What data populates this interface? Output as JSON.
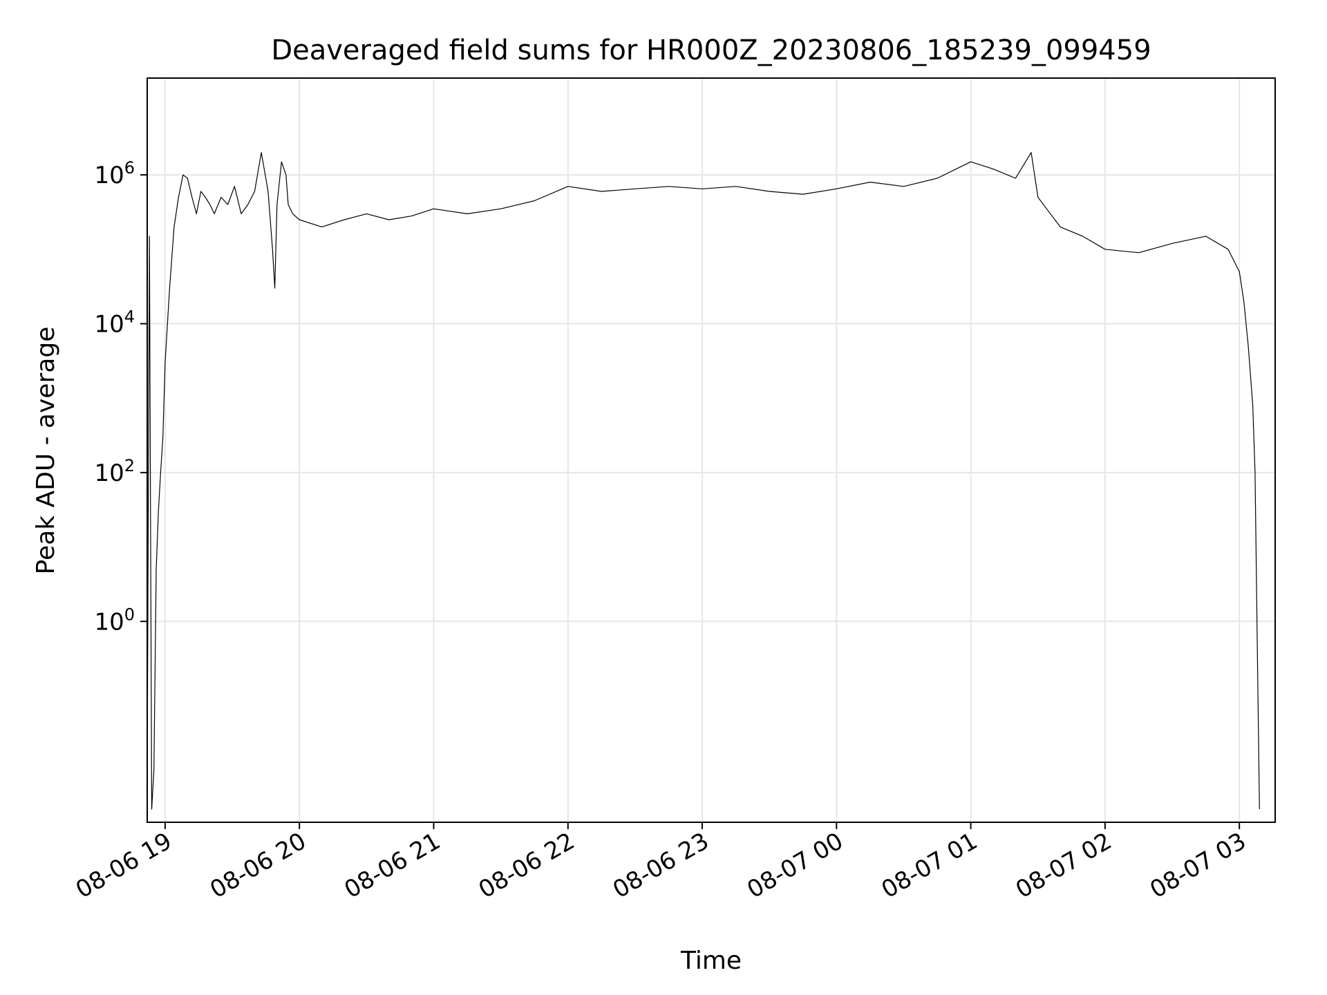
{
  "chart_data": {
    "type": "line",
    "title": "Deaveraged field sums for HR000Z_20230806_185239_099459",
    "xlabel": "Time",
    "ylabel": "Peak ADU - average",
    "yscale": "log",
    "xlim": [
      "08-06 18:52",
      "08-07 03:16"
    ],
    "ylim": [
      0.002,
      20000000
    ],
    "grid": true,
    "line_color": "#000000",
    "grid_color": "#e6e6e6",
    "x_ticks": [
      "08-06 19",
      "08-06 20",
      "08-06 21",
      "08-06 22",
      "08-06 23",
      "08-07 00",
      "08-07 01",
      "08-07 02",
      "08-07 03"
    ],
    "y_ticks": [
      {
        "base": "10",
        "exp": "0",
        "value": 1
      },
      {
        "base": "10",
        "exp": "2",
        "value": 100
      },
      {
        "base": "10",
        "exp": "4",
        "value": 10000
      },
      {
        "base": "10",
        "exp": "6",
        "value": 1000000
      }
    ],
    "series": [
      {
        "x": [
          "08-06 18:52",
          "08-06 18:53",
          "08-06 18:54",
          "08-06 18:55",
          "08-06 18:56",
          "08-06 18:57",
          "08-06 18:58",
          "08-06 18:59",
          "08-06 19:00",
          "08-06 19:02",
          "08-06 19:04",
          "08-06 19:06",
          "08-06 19:08",
          "08-06 19:10",
          "08-06 19:12",
          "08-06 19:14",
          "08-06 19:16",
          "08-06 19:18",
          "08-06 19:20",
          "08-06 19:22",
          "08-06 19:25",
          "08-06 19:28",
          "08-06 19:31",
          "08-06 19:34",
          "08-06 19:37",
          "08-06 19:40",
          "08-06 19:43",
          "08-06 19:46",
          "08-06 19:48",
          "08-06 19:49",
          "08-06 19:50",
          "08-06 19:52",
          "08-06 19:54",
          "08-06 19:55",
          "08-06 19:57",
          "08-06 20:00",
          "08-06 20:10",
          "08-06 20:20",
          "08-06 20:30",
          "08-06 20:40",
          "08-06 20:50",
          "08-06 21:00",
          "08-06 21:15",
          "08-06 21:30",
          "08-06 21:45",
          "08-06 22:00",
          "08-06 22:15",
          "08-06 22:30",
          "08-06 22:45",
          "08-06 23:00",
          "08-06 23:15",
          "08-06 23:30",
          "08-06 23:45",
          "08-07 00:00",
          "08-07 00:15",
          "08-07 00:30",
          "08-07 00:45",
          "08-07 01:00",
          "08-07 01:10",
          "08-07 01:20",
          "08-07 01:27",
          "08-07 01:30",
          "08-07 01:40",
          "08-07 01:50",
          "08-07 02:00",
          "08-07 02:15",
          "08-07 02:30",
          "08-07 02:45",
          "08-07 02:55",
          "08-07 03:00",
          "08-07 03:02",
          "08-07 03:04",
          "08-07 03:06",
          "08-07 03:07",
          "08-07 03:08",
          "08-07 03:09"
        ],
        "y": [
          0.01,
          150000,
          0.003,
          0.01,
          5,
          30,
          100,
          300,
          3000,
          30000,
          200000,
          500000,
          1000000,
          900000,
          500000,
          300000,
          600000,
          500000,
          400000,
          300000,
          500000,
          400000,
          700000,
          300000,
          400000,
          600000,
          2000000,
          600000,
          100000,
          30000,
          400000,
          1500000,
          1000000,
          400000,
          300000,
          250000,
          200000,
          250000,
          300000,
          250000,
          280000,
          350000,
          300000,
          350000,
          450000,
          700000,
          600000,
          650000,
          700000,
          650000,
          700000,
          600000,
          550000,
          650000,
          800000,
          700000,
          900000,
          1500000,
          1200000,
          900000,
          2000000,
          500000,
          200000,
          150000,
          100000,
          90000,
          120000,
          150000,
          100000,
          50000,
          20000,
          5000,
          800,
          100,
          0.5,
          0.003
        ]
      }
    ]
  }
}
